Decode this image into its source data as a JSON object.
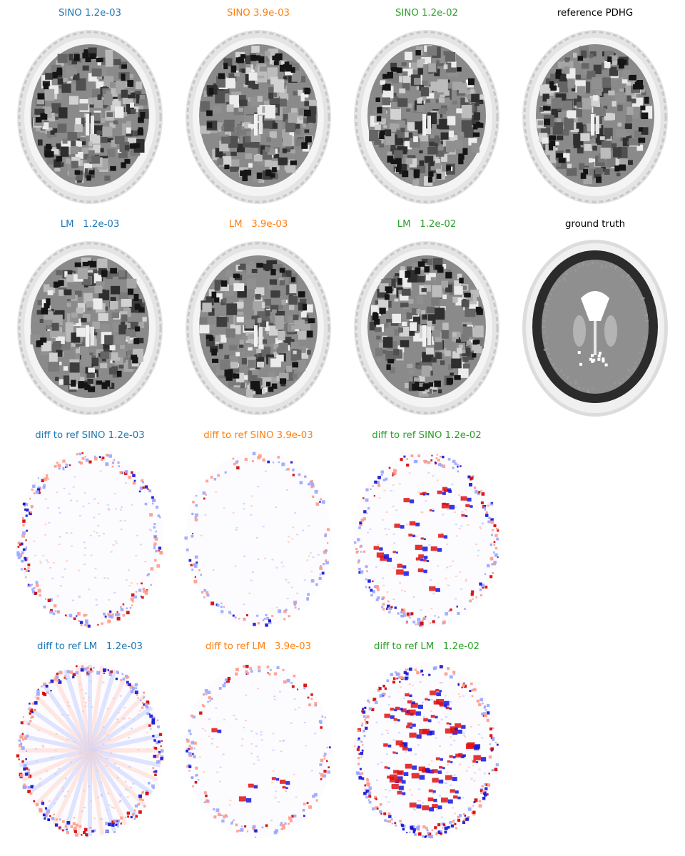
{
  "colors": {
    "blue": "#1f77b4",
    "orange": "#ff7f0e",
    "green": "#2ca02c",
    "black": "#000000"
  },
  "panels": [
    {
      "id": "p00",
      "title": "SINO 1.2e-03",
      "color": "#1f77b4",
      "kind": "recon"
    },
    {
      "id": "p01",
      "title": "SINO 3.9e-03",
      "color": "#ff7f0e",
      "kind": "recon"
    },
    {
      "id": "p02",
      "title": "SINO 1.2e-02",
      "color": "#2ca02c",
      "kind": "recon"
    },
    {
      "id": "p03",
      "title": "reference PDHG",
      "color": "#000000",
      "kind": "recon"
    },
    {
      "id": "p10",
      "title": "LM   1.2e-03",
      "color": "#1f77b4",
      "kind": "recon"
    },
    {
      "id": "p11",
      "title": "LM   3.9e-03",
      "color": "#ff7f0e",
      "kind": "recon"
    },
    {
      "id": "p12",
      "title": "LM   1.2e-02",
      "color": "#2ca02c",
      "kind": "recon"
    },
    {
      "id": "p13",
      "title": "ground truth",
      "color": "#000000",
      "kind": "truth"
    },
    {
      "id": "p20",
      "title": "diff to ref SINO 1.2e-03",
      "color": "#1f77b4",
      "kind": "diff"
    },
    {
      "id": "p21",
      "title": "diff to ref SINO 3.9e-03",
      "color": "#ff7f0e",
      "kind": "diff"
    },
    {
      "id": "p22",
      "title": "diff to ref SINO 1.2e-02",
      "color": "#2ca02c",
      "kind": "diff"
    },
    {
      "id": "p30",
      "title": "diff to ref LM   1.2e-03",
      "color": "#1f77b4",
      "kind": "diff"
    },
    {
      "id": "p31",
      "title": "diff to ref LM   3.9e-03",
      "color": "#ff7f0e",
      "kind": "diff"
    },
    {
      "id": "p32",
      "title": "diff to ref LM   1.2e-02",
      "color": "#2ca02c",
      "kind": "diff"
    }
  ]
}
